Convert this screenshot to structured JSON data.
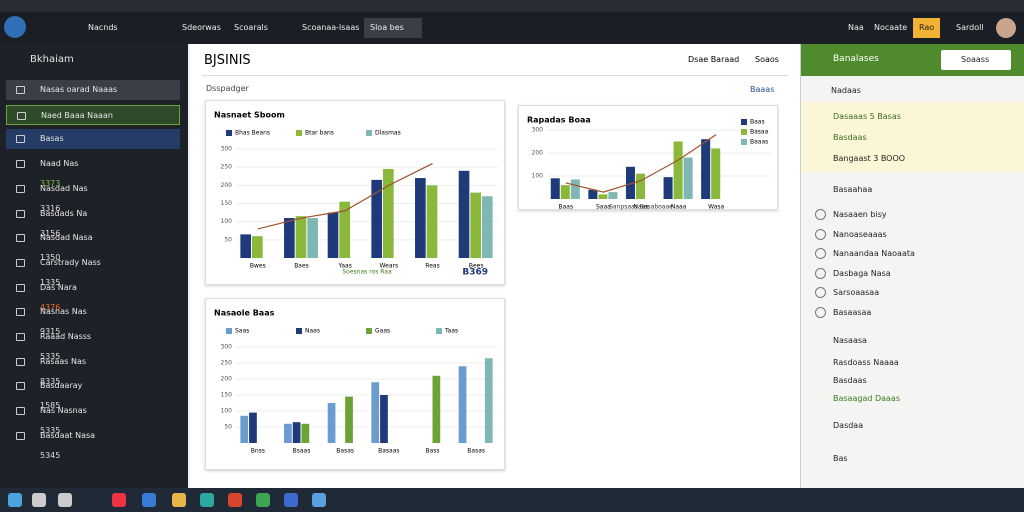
{
  "topbar": {
    "tabs": [
      "Nacnds",
      "Sdeorwas",
      "Scoarals",
      "Scoanaa-lsaas",
      "Sloa bes"
    ],
    "right": [
      "Naa",
      "Nocaate",
      "Sardoll"
    ],
    "button": "Rao"
  },
  "sidebar": {
    "title": "Bkhaiam",
    "items": [
      {
        "label": "Nasas oarad Naaas",
        "value": null
      },
      {
        "label": "Naed Baaa Naaan",
        "value": null
      },
      {
        "label": "Basas",
        "value": null
      },
      {
        "label": "Naad Nas",
        "value": "3373"
      },
      {
        "label": "Nasdad Nas",
        "value": "3316"
      },
      {
        "label": "Basdads Na",
        "value": "3156"
      },
      {
        "label": "Nasdad Nasa",
        "value": "1350"
      },
      {
        "label": "Carstrady Nass",
        "value": "1335"
      },
      {
        "label": "Das Nara",
        "value": "4376"
      },
      {
        "label": "Nasnas Nas",
        "value": "9315"
      },
      {
        "label": "Raaad Nasss",
        "value": "5335"
      },
      {
        "label": "Rasaas Nas",
        "value": "8335"
      },
      {
        "label": "Basdaaray",
        "value": "1585"
      },
      {
        "label": "Nas Nasnas",
        "value": "5335"
      },
      {
        "label": "Basdaat Nasa",
        "value": "5345"
      }
    ]
  },
  "main": {
    "title": "BJSINIS",
    "subtitle": "Dsspadger",
    "actions": [
      "Dsae Baraad",
      "Soaos"
    ],
    "link": "Baaas"
  },
  "charts": [
    {
      "type": "bar",
      "title": "Nasnaet Sboom",
      "categories": [
        "Bwes",
        "Baes",
        "Yaas",
        "Wears",
        "Reas",
        "Bees"
      ],
      "series": [
        {
          "name": "Bhas Beans",
          "color": "#1f3a7a",
          "values": [
            65,
            110,
            125,
            215,
            220,
            240
          ]
        },
        {
          "name": "Btar bans",
          "color": "#8ab83a",
          "values": [
            60,
            115,
            155,
            245,
            200,
            180
          ]
        },
        {
          "name": "Dlasmas",
          "color": "#7fb7b4",
          "values": [
            null,
            110,
            null,
            null,
            null,
            170
          ]
        }
      ],
      "line": {
        "color": "#a0522d",
        "values": [
          80,
          110,
          130,
          200,
          260,
          null
        ]
      },
      "ylim": [
        0,
        300
      ],
      "yticks": [
        50,
        100,
        150,
        200,
        250,
        300
      ],
      "footer": "Soesnas ros Raa",
      "total": "B369"
    },
    {
      "type": "bar",
      "title": "Rapadas Boaa",
      "categories": [
        "Baas",
        "Saaa",
        "Naas",
        "Naaa",
        "Wasa"
      ],
      "series": [
        {
          "name": "Baas",
          "color": "#1f3a7a",
          "values": [
            90,
            40,
            140,
            95,
            260
          ]
        },
        {
          "name": "Basaa",
          "color": "#8ab83a",
          "values": [
            60,
            20,
            110,
            250,
            220
          ]
        },
        {
          "name": "Baaas",
          "color": "#7fb7b4",
          "values": [
            85,
            30,
            null,
            180,
            null
          ]
        }
      ],
      "line": {
        "color": "#a0522d",
        "values": [
          70,
          30,
          80,
          170,
          280
        ]
      },
      "ylim": [
        0,
        300
      ],
      "yticks": [
        100,
        200,
        300
      ],
      "footer": "Sanpsaas Basaboaae"
    },
    {
      "type": "bar",
      "title": "Nasaole Baas",
      "categories": [
        "Bnss",
        "Bsaas",
        "Basas",
        "Basaas",
        "Bass",
        "Basas"
      ],
      "series": [
        {
          "name": "Saas",
          "color": "#6a9ccf",
          "values": [
            85,
            60,
            125,
            190,
            null,
            240
          ]
        },
        {
          "name": "Naas",
          "color": "#1f3a7a",
          "values": [
            95,
            65,
            null,
            150,
            null,
            null
          ]
        },
        {
          "name": "Gaas",
          "color": "#6aa336",
          "values": [
            null,
            60,
            145,
            null,
            210,
            null
          ]
        },
        {
          "name": "Taas",
          "color": "#7fb7b4",
          "values": [
            null,
            null,
            null,
            null,
            null,
            265
          ]
        }
      ],
      "ylim": [
        0,
        300
      ],
      "yticks": [
        50,
        100,
        150,
        200,
        250,
        300
      ]
    }
  ],
  "panel": {
    "title": "Banalases",
    "button": "Soaass",
    "top": "Nadaas",
    "highlights": [
      "Dasaaas 5 Basas",
      "Basdaas",
      "Bangaast 3 BOOO"
    ],
    "section1": "Basaahaa",
    "checks": [
      "Nasaaen bisy",
      "Nanoaseaaas",
      "Nanaandaa Naoaata",
      "Dasbaga Nasa",
      "Sarsoaasaa",
      "Basaasaa"
    ],
    "section2": "Nasaasa",
    "links": [
      "Rasdoass Naaaa",
      "Basdaas",
      "Basaagad Daaas"
    ],
    "bottom": [
      "Dasdaa",
      "Bas"
    ]
  }
}
